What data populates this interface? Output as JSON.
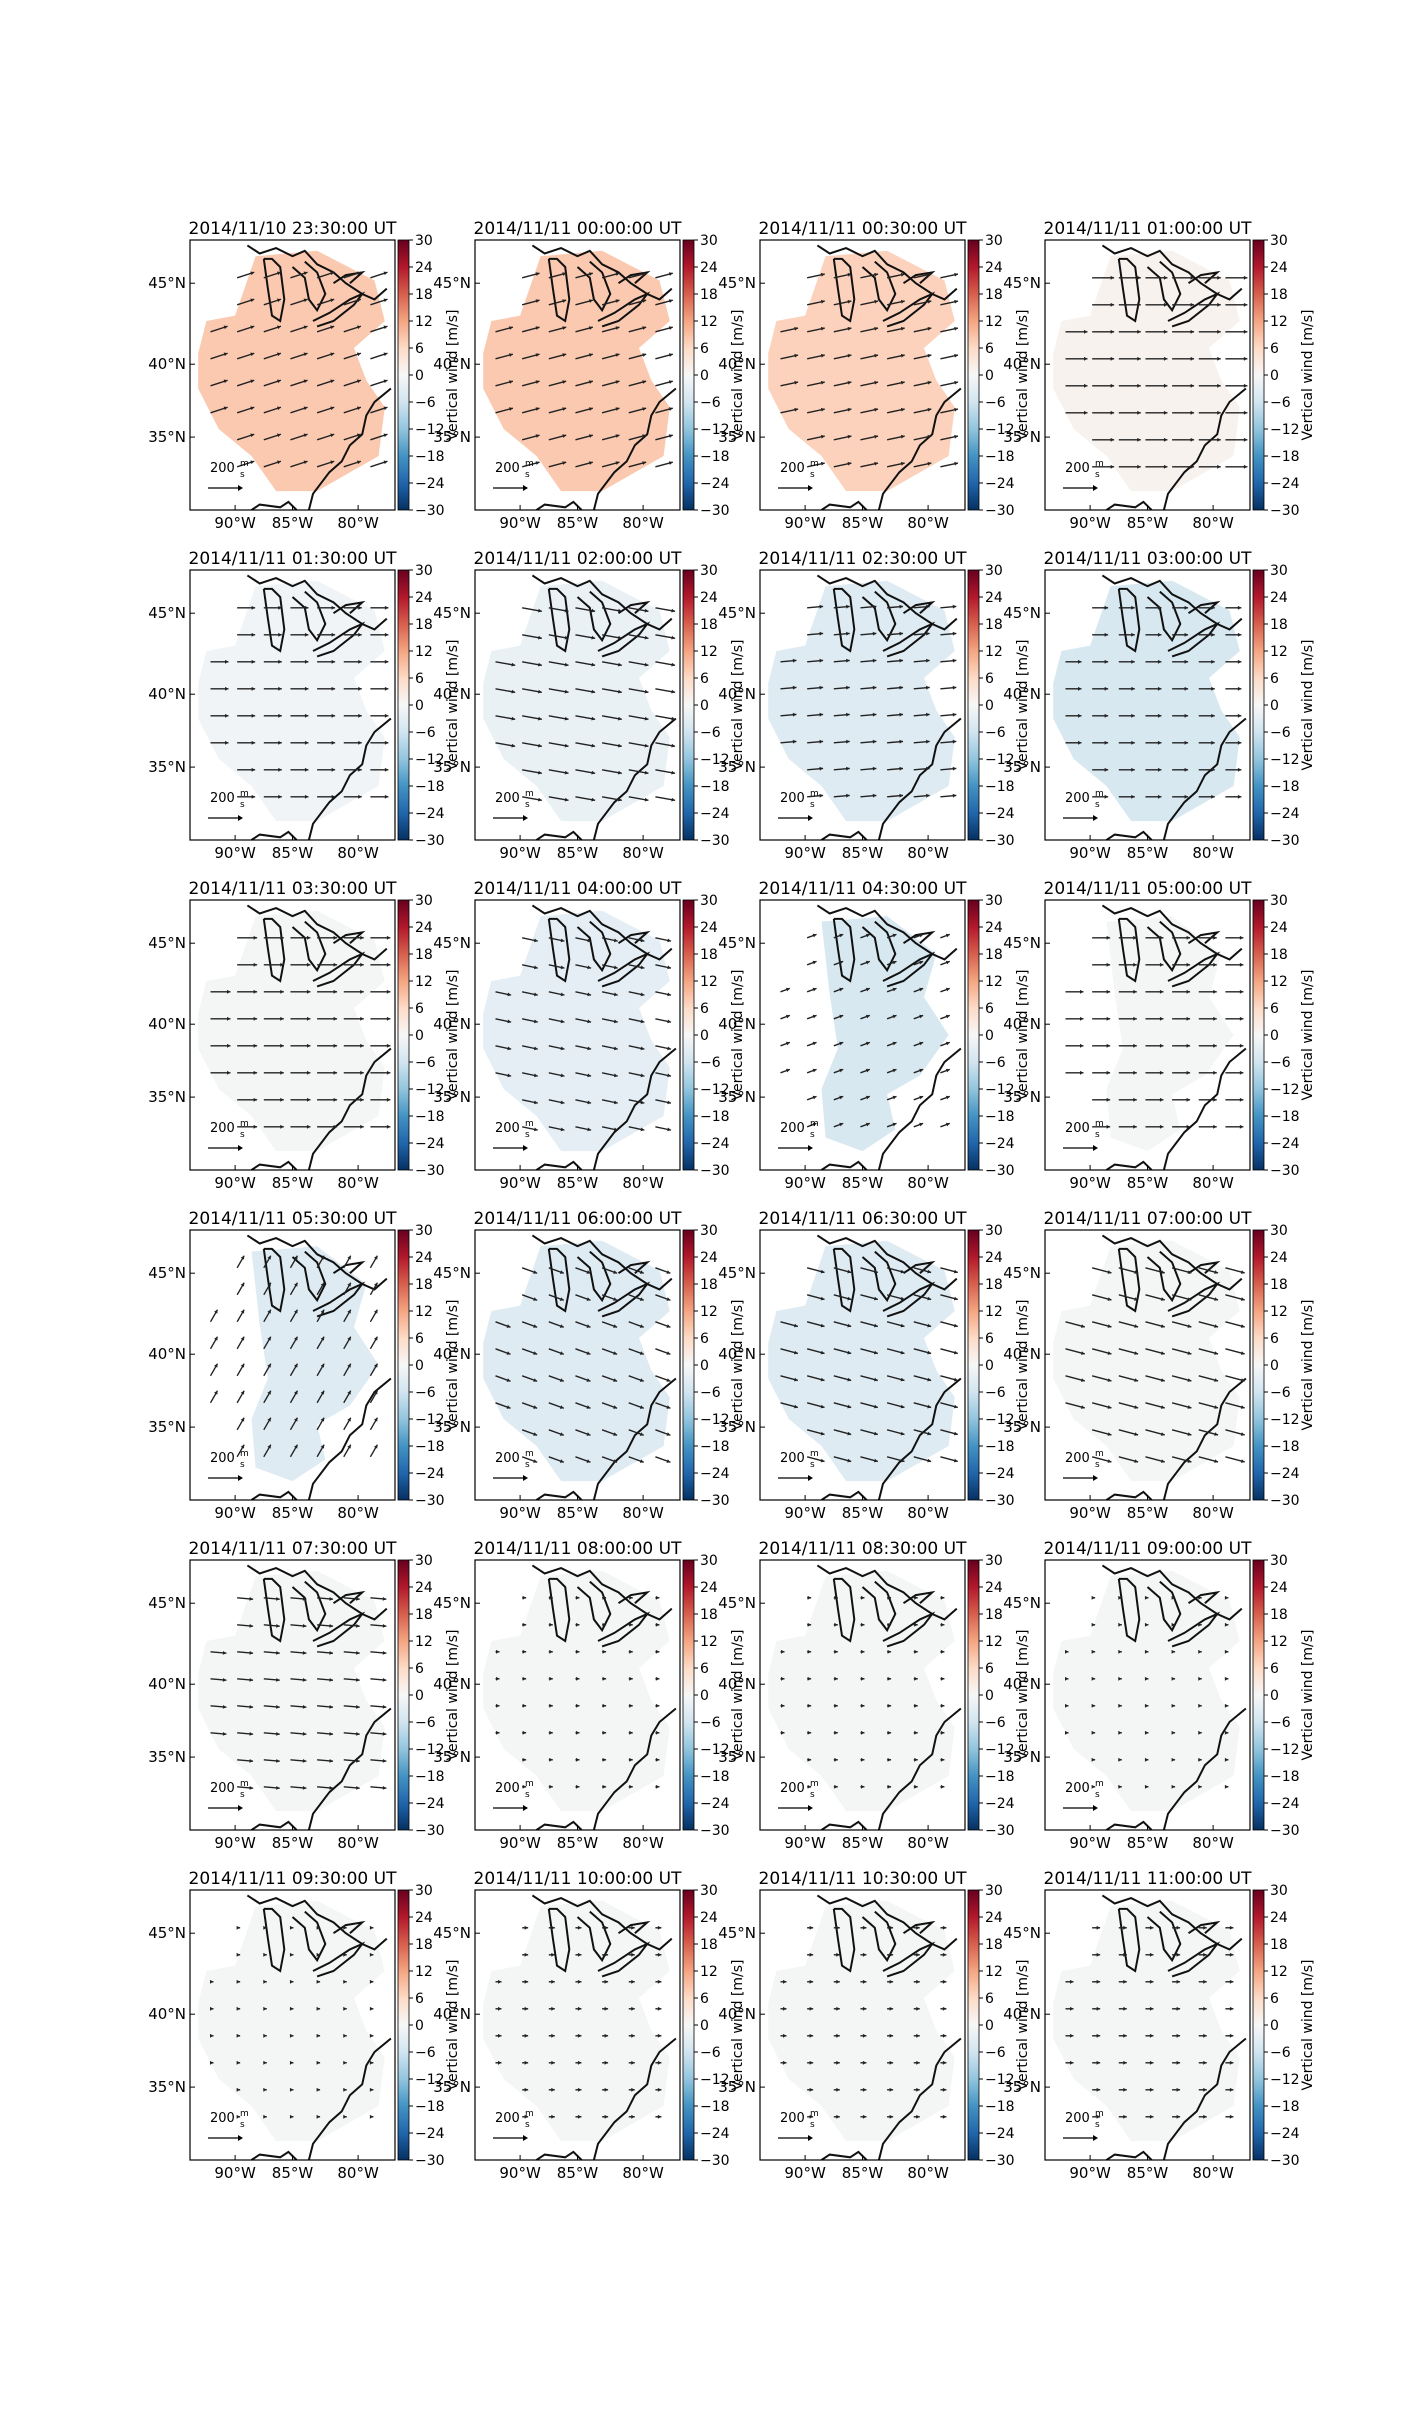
{
  "colorbar": {
    "label": "Vertical wind [m/s]",
    "ticks": [
      "30",
      "24",
      "18",
      "12",
      "6",
      "0",
      "−6",
      "−12",
      "−18",
      "−24",
      "−30"
    ],
    "range": [
      -30,
      30
    ],
    "colormap": "RdBu_r"
  },
  "axes": {
    "lon_ticks": [
      "90°W",
      "85°W",
      "80°W"
    ],
    "lat_ticks": [
      "45°N",
      "40°N",
      "35°N"
    ]
  },
  "scale_arrow": {
    "value": "200",
    "unit_num": "m",
    "unit_den": "s"
  },
  "colors": {
    "coast": "#111111",
    "arrow": "#222222",
    "land_hi": "#f7c4a5",
    "land_mid": "#f3e9e3",
    "land_lo": "#d7e7f2",
    "neutral": "#f2f2f2"
  },
  "panels": [
    {
      "title": "2014/11/10 23:30:00 UT",
      "fill_value": 8,
      "region": "large"
    },
    {
      "title": "2014/11/11 00:00:00 UT",
      "fill_value": 8,
      "region": "large"
    },
    {
      "title": "2014/11/11 00:30:00 UT",
      "fill_value": 7,
      "region": "large"
    },
    {
      "title": "2014/11/11 01:00:00 UT",
      "fill_value": 1,
      "region": "large"
    },
    {
      "title": "2014/11/11 01:30:00 UT",
      "fill_value": -1,
      "region": "large"
    },
    {
      "title": "2014/11/11 02:00:00 UT",
      "fill_value": -2,
      "region": "large"
    },
    {
      "title": "2014/11/11 02:30:00 UT",
      "fill_value": -4,
      "region": "large"
    },
    {
      "title": "2014/11/11 03:00:00 UT",
      "fill_value": -5,
      "region": "large"
    },
    {
      "title": "2014/11/11 03:30:00 UT",
      "fill_value": -0.5,
      "region": "large"
    },
    {
      "title": "2014/11/11 04:00:00 UT",
      "fill_value": -3,
      "region": "large"
    },
    {
      "title": "2014/11/11 04:30:00 UT",
      "fill_value": -5,
      "region": "narrow"
    },
    {
      "title": "2014/11/11 05:00:00 UT",
      "fill_value": -0.5,
      "region": "narrow"
    },
    {
      "title": "2014/11/11 05:30:00 UT",
      "fill_value": -4,
      "region": "narrow"
    },
    {
      "title": "2014/11/11 06:00:00 UT",
      "fill_value": -4,
      "region": "large"
    },
    {
      "title": "2014/11/11 06:30:00 UT",
      "fill_value": -4,
      "region": "large"
    },
    {
      "title": "2014/11/11 07:00:00 UT",
      "fill_value": -0.5,
      "region": "large"
    },
    {
      "title": "2014/11/11 07:30:00 UT",
      "fill_value": -0.5,
      "region": "large"
    },
    {
      "title": "2014/11/11 08:00:00 UT",
      "fill_value": -0.5,
      "region": "large"
    },
    {
      "title": "2014/11/11 08:30:00 UT",
      "fill_value": -0.5,
      "region": "large"
    },
    {
      "title": "2014/11/11 09:00:00 UT",
      "fill_value": -0.5,
      "region": "large"
    },
    {
      "title": "2014/11/11 09:30:00 UT",
      "fill_value": -0.5,
      "region": "large"
    },
    {
      "title": "2014/11/11 10:00:00 UT",
      "fill_value": -0.5,
      "region": "large"
    },
    {
      "title": "2014/11/11 10:30:00 UT",
      "fill_value": -0.5,
      "region": "large"
    },
    {
      "title": "2014/11/11 11:00:00 UT",
      "fill_value": -0.5,
      "region": "large"
    }
  ]
}
